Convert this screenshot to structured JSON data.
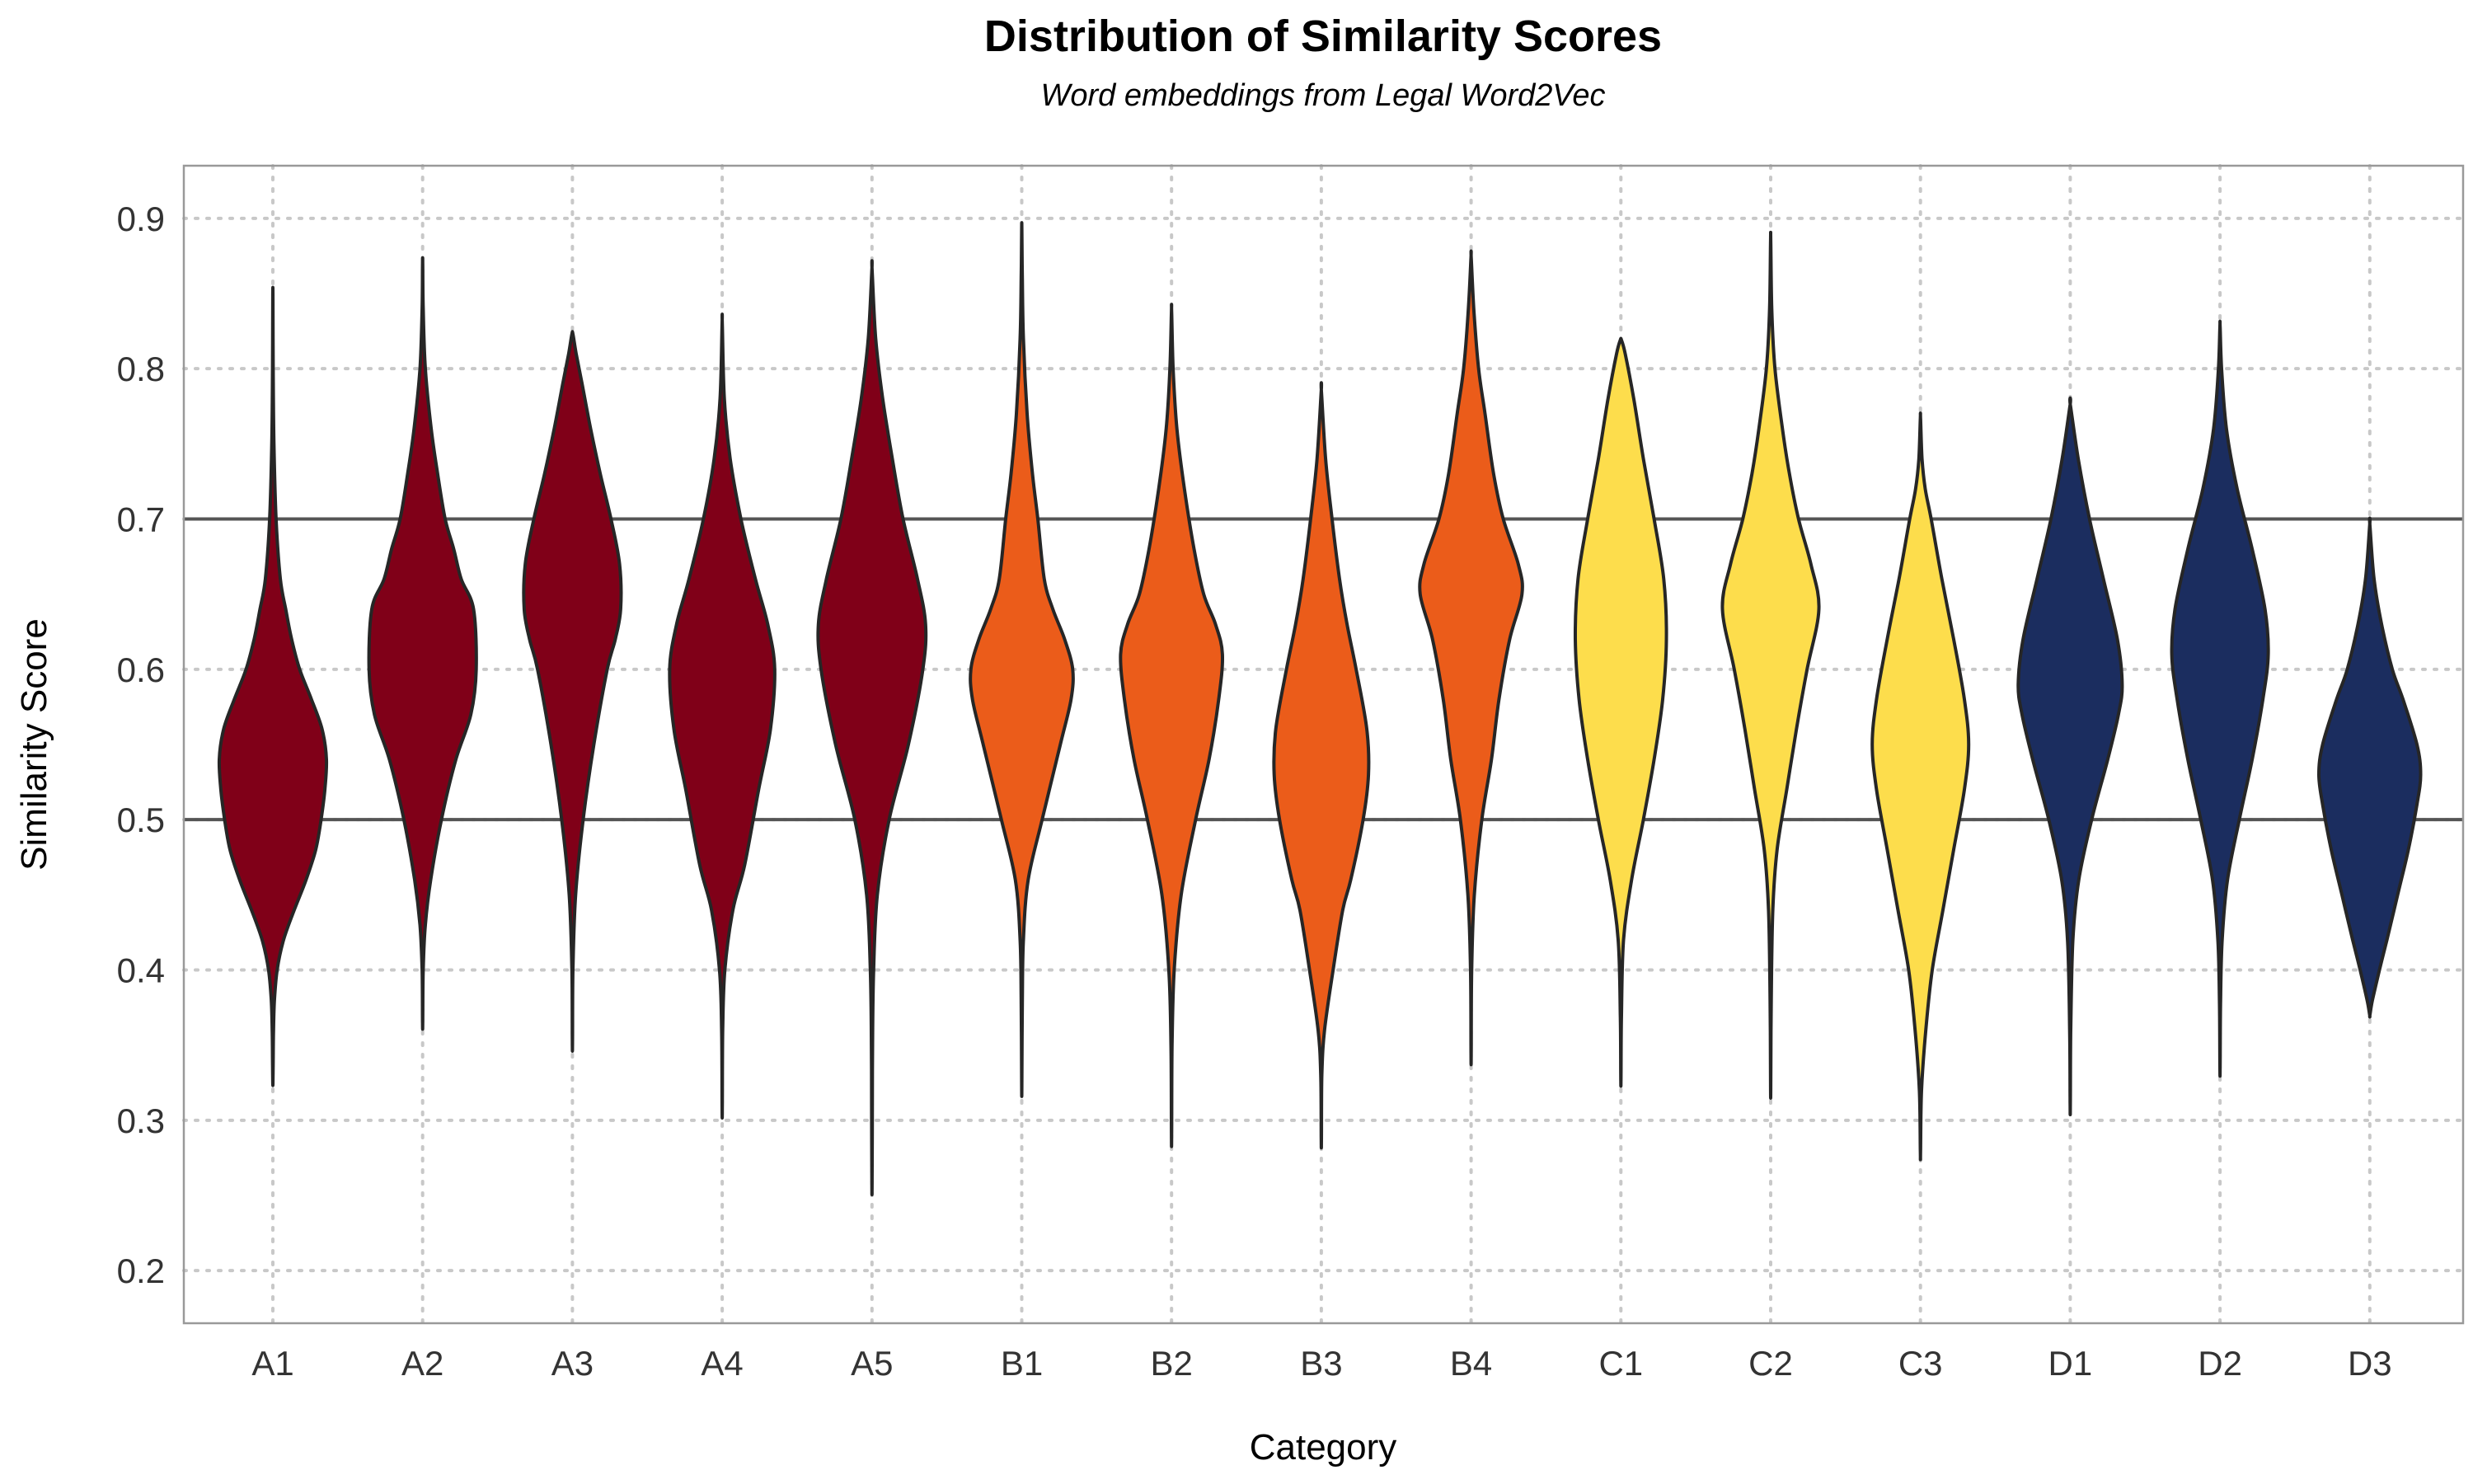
{
  "chart_data": {
    "type": "violin",
    "title": "Distribution of Similarity Scores",
    "subtitle": "Word embeddings from Legal Word2Vec",
    "xlabel": "Category",
    "ylabel": "Similarity Score",
    "ylim": [
      0.165,
      0.935
    ],
    "yticks": [
      0.2,
      0.3,
      0.4,
      0.5,
      0.6,
      0.7,
      0.8,
      0.9
    ],
    "ytick_labels": [
      "0.2",
      "0.3",
      "0.4",
      "0.5",
      "0.6",
      "0.7",
      "0.8",
      "0.9"
    ],
    "reference_lines": [
      0.5,
      0.7
    ],
    "grid": true,
    "legend": "none",
    "colors": {
      "A": "#800018",
      "B": "#EB5C1A",
      "C": "#FDDD4C",
      "D": "#1B2D5F"
    },
    "categories": [
      "A1",
      "A2",
      "A3",
      "A4",
      "A5",
      "B1",
      "B2",
      "B3",
      "B4",
      "C1",
      "C2",
      "C3",
      "D1",
      "D2",
      "D3"
    ],
    "groups": [
      "A",
      "A",
      "A",
      "A",
      "A",
      "B",
      "B",
      "B",
      "B",
      "C",
      "C",
      "C",
      "D",
      "D",
      "D"
    ],
    "min": [
      0.325,
      0.365,
      0.352,
      0.308,
      0.256,
      0.323,
      0.29,
      0.287,
      0.344,
      0.328,
      0.322,
      0.279,
      0.31,
      0.335,
      0.37
    ],
    "max": [
      0.848,
      0.87,
      0.823,
      0.83,
      0.866,
      0.893,
      0.838,
      0.785,
      0.874,
      0.819,
      0.885,
      0.767,
      0.776,
      0.828,
      0.696
    ],
    "density_profiles": [
      [
        [
          0.325,
          0.002
        ],
        [
          0.34,
          0.006
        ],
        [
          0.36,
          0.012
        ],
        [
          0.38,
          0.03
        ],
        [
          0.4,
          0.08
        ],
        [
          0.42,
          0.2
        ],
        [
          0.44,
          0.4
        ],
        [
          0.46,
          0.62
        ],
        [
          0.48,
          0.8
        ],
        [
          0.5,
          0.9
        ],
        [
          0.52,
          0.97
        ],
        [
          0.54,
          1.0
        ],
        [
          0.56,
          0.92
        ],
        [
          0.58,
          0.72
        ],
        [
          0.6,
          0.5
        ],
        [
          0.62,
          0.35
        ],
        [
          0.64,
          0.24
        ],
        [
          0.66,
          0.14
        ],
        [
          0.7,
          0.06
        ],
        [
          0.75,
          0.02
        ],
        [
          0.8,
          0.006
        ],
        [
          0.848,
          0.002
        ]
      ],
      [
        [
          0.365,
          0.002
        ],
        [
          0.4,
          0.01
        ],
        [
          0.43,
          0.05
        ],
        [
          0.46,
          0.15
        ],
        [
          0.5,
          0.35
        ],
        [
          0.54,
          0.62
        ],
        [
          0.57,
          0.9
        ],
        [
          0.6,
          1.0
        ],
        [
          0.64,
          0.95
        ],
        [
          0.66,
          0.72
        ],
        [
          0.68,
          0.58
        ],
        [
          0.7,
          0.42
        ],
        [
          0.73,
          0.28
        ],
        [
          0.76,
          0.16
        ],
        [
          0.8,
          0.05
        ],
        [
          0.84,
          0.01
        ],
        [
          0.87,
          0.002
        ]
      ],
      [
        [
          0.352,
          0.002
        ],
        [
          0.4,
          0.01
        ],
        [
          0.45,
          0.06
        ],
        [
          0.5,
          0.2
        ],
        [
          0.55,
          0.4
        ],
        [
          0.6,
          0.65
        ],
        [
          0.62,
          0.8
        ],
        [
          0.64,
          0.9
        ],
        [
          0.67,
          0.88
        ],
        [
          0.7,
          0.72
        ],
        [
          0.73,
          0.52
        ],
        [
          0.76,
          0.34
        ],
        [
          0.79,
          0.18
        ],
        [
          0.81,
          0.07
        ],
        [
          0.823,
          0.01
        ]
      ],
      [
        [
          0.308,
          0.002
        ],
        [
          0.36,
          0.01
        ],
        [
          0.4,
          0.05
        ],
        [
          0.44,
          0.2
        ],
        [
          0.47,
          0.42
        ],
        [
          0.52,
          0.68
        ],
        [
          0.56,
          0.9
        ],
        [
          0.6,
          0.98
        ],
        [
          0.63,
          0.85
        ],
        [
          0.66,
          0.62
        ],
        [
          0.7,
          0.35
        ],
        [
          0.74,
          0.15
        ],
        [
          0.78,
          0.04
        ],
        [
          0.83,
          0.002
        ]
      ],
      [
        [
          0.256,
          0.002
        ],
        [
          0.3,
          0.006
        ],
        [
          0.35,
          0.01
        ],
        [
          0.4,
          0.03
        ],
        [
          0.45,
          0.1
        ],
        [
          0.5,
          0.32
        ],
        [
          0.55,
          0.68
        ],
        [
          0.6,
          0.95
        ],
        [
          0.63,
          1.0
        ],
        [
          0.66,
          0.85
        ],
        [
          0.7,
          0.58
        ],
        [
          0.74,
          0.38
        ],
        [
          0.78,
          0.2
        ],
        [
          0.82,
          0.07
        ],
        [
          0.866,
          0.002
        ]
      ],
      [
        [
          0.323,
          0.002
        ],
        [
          0.38,
          0.01
        ],
        [
          0.42,
          0.03
        ],
        [
          0.46,
          0.12
        ],
        [
          0.5,
          0.38
        ],
        [
          0.55,
          0.72
        ],
        [
          0.58,
          0.92
        ],
        [
          0.6,
          0.95
        ],
        [
          0.62,
          0.8
        ],
        [
          0.64,
          0.58
        ],
        [
          0.66,
          0.42
        ],
        [
          0.7,
          0.3
        ],
        [
          0.73,
          0.2
        ],
        [
          0.77,
          0.1
        ],
        [
          0.82,
          0.03
        ],
        [
          0.86,
          0.01
        ],
        [
          0.893,
          0.002
        ]
      ],
      [
        [
          0.29,
          0.002
        ],
        [
          0.35,
          0.01
        ],
        [
          0.4,
          0.05
        ],
        [
          0.45,
          0.18
        ],
        [
          0.5,
          0.45
        ],
        [
          0.54,
          0.7
        ],
        [
          0.58,
          0.88
        ],
        [
          0.61,
          0.95
        ],
        [
          0.63,
          0.82
        ],
        [
          0.65,
          0.6
        ],
        [
          0.68,
          0.42
        ],
        [
          0.72,
          0.24
        ],
        [
          0.76,
          0.1
        ],
        [
          0.8,
          0.03
        ],
        [
          0.838,
          0.002
        ]
      ],
      [
        [
          0.287,
          0.002
        ],
        [
          0.33,
          0.01
        ],
        [
          0.36,
          0.06
        ],
        [
          0.4,
          0.22
        ],
        [
          0.44,
          0.4
        ],
        [
          0.46,
          0.55
        ],
        [
          0.5,
          0.78
        ],
        [
          0.53,
          0.88
        ],
        [
          0.56,
          0.85
        ],
        [
          0.6,
          0.65
        ],
        [
          0.63,
          0.48
        ],
        [
          0.66,
          0.34
        ],
        [
          0.7,
          0.2
        ],
        [
          0.74,
          0.08
        ],
        [
          0.785,
          0.002
        ]
      ],
      [
        [
          0.344,
          0.002
        ],
        [
          0.4,
          0.01
        ],
        [
          0.45,
          0.06
        ],
        [
          0.5,
          0.2
        ],
        [
          0.54,
          0.38
        ],
        [
          0.58,
          0.52
        ],
        [
          0.62,
          0.72
        ],
        [
          0.65,
          0.95
        ],
        [
          0.67,
          0.88
        ],
        [
          0.7,
          0.6
        ],
        [
          0.73,
          0.42
        ],
        [
          0.77,
          0.26
        ],
        [
          0.8,
          0.14
        ],
        [
          0.84,
          0.05
        ],
        [
          0.874,
          0.002
        ]
      ],
      [
        [
          0.328,
          0.002
        ],
        [
          0.37,
          0.01
        ],
        [
          0.42,
          0.05
        ],
        [
          0.46,
          0.2
        ],
        [
          0.5,
          0.42
        ],
        [
          0.54,
          0.62
        ],
        [
          0.58,
          0.78
        ],
        [
          0.62,
          0.85
        ],
        [
          0.66,
          0.8
        ],
        [
          0.7,
          0.62
        ],
        [
          0.74,
          0.42
        ],
        [
          0.78,
          0.24
        ],
        [
          0.81,
          0.08
        ],
        [
          0.819,
          0.01
        ]
      ],
      [
        [
          0.322,
          0.002
        ],
        [
          0.38,
          0.01
        ],
        [
          0.44,
          0.04
        ],
        [
          0.48,
          0.12
        ],
        [
          0.52,
          0.3
        ],
        [
          0.56,
          0.48
        ],
        [
          0.6,
          0.68
        ],
        [
          0.64,
          0.9
        ],
        [
          0.67,
          0.75
        ],
        [
          0.7,
          0.52
        ],
        [
          0.73,
          0.35
        ],
        [
          0.76,
          0.22
        ],
        [
          0.8,
          0.08
        ],
        [
          0.84,
          0.02
        ],
        [
          0.885,
          0.002
        ]
      ],
      [
        [
          0.279,
          0.002
        ],
        [
          0.32,
          0.02
        ],
        [
          0.36,
          0.1
        ],
        [
          0.4,
          0.22
        ],
        [
          0.44,
          0.42
        ],
        [
          0.48,
          0.62
        ],
        [
          0.52,
          0.82
        ],
        [
          0.55,
          0.9
        ],
        [
          0.58,
          0.82
        ],
        [
          0.62,
          0.62
        ],
        [
          0.66,
          0.4
        ],
        [
          0.7,
          0.2
        ],
        [
          0.72,
          0.09
        ],
        [
          0.74,
          0.03
        ],
        [
          0.767,
          0.002
        ]
      ],
      [
        [
          0.31,
          0.002
        ],
        [
          0.36,
          0.01
        ],
        [
          0.42,
          0.05
        ],
        [
          0.46,
          0.16
        ],
        [
          0.5,
          0.4
        ],
        [
          0.54,
          0.7
        ],
        [
          0.57,
          0.9
        ],
        [
          0.59,
          0.97
        ],
        [
          0.62,
          0.88
        ],
        [
          0.66,
          0.62
        ],
        [
          0.7,
          0.36
        ],
        [
          0.74,
          0.15
        ],
        [
          0.776,
          0.002
        ]
      ],
      [
        [
          0.335,
          0.002
        ],
        [
          0.38,
          0.01
        ],
        [
          0.42,
          0.04
        ],
        [
          0.46,
          0.14
        ],
        [
          0.5,
          0.36
        ],
        [
          0.54,
          0.6
        ],
        [
          0.58,
          0.8
        ],
        [
          0.61,
          0.9
        ],
        [
          0.64,
          0.84
        ],
        [
          0.68,
          0.6
        ],
        [
          0.72,
          0.32
        ],
        [
          0.76,
          0.12
        ],
        [
          0.8,
          0.03
        ],
        [
          0.828,
          0.002
        ]
      ],
      [
        [
          0.37,
          0.002
        ],
        [
          0.38,
          0.05
        ],
        [
          0.4,
          0.18
        ],
        [
          0.42,
          0.32
        ],
        [
          0.45,
          0.52
        ],
        [
          0.48,
          0.72
        ],
        [
          0.51,
          0.88
        ],
        [
          0.53,
          0.95
        ],
        [
          0.55,
          0.88
        ],
        [
          0.58,
          0.62
        ],
        [
          0.6,
          0.42
        ],
        [
          0.63,
          0.22
        ],
        [
          0.66,
          0.08
        ],
        [
          0.696,
          0.002
        ]
      ]
    ]
  }
}
